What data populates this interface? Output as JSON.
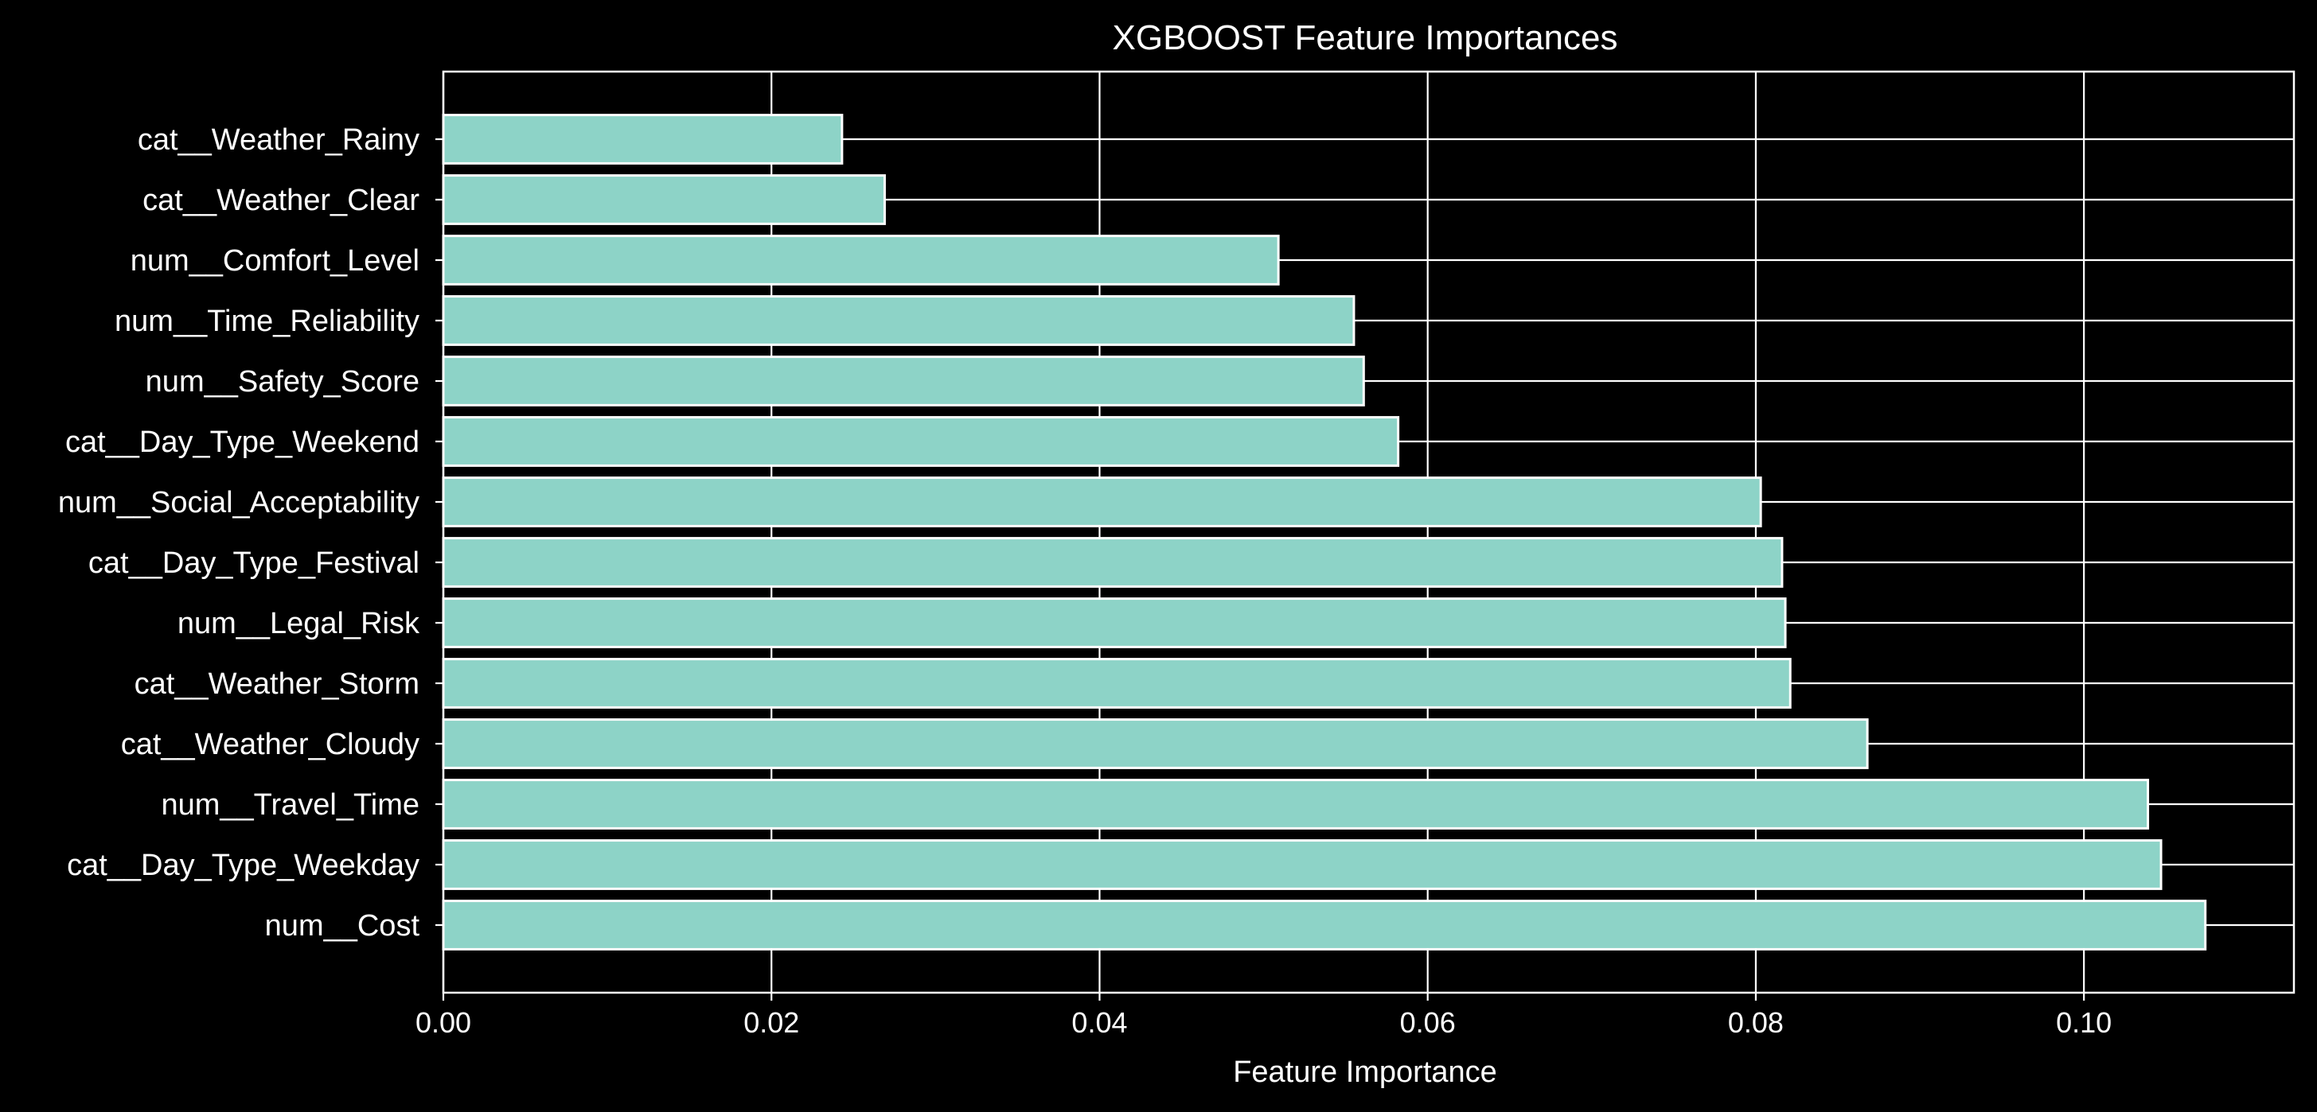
{
  "chart_data": {
    "type": "bar",
    "orientation": "horizontal",
    "title": "XGBOOST Feature Importances",
    "xlabel": "Feature Importance",
    "ylabel": "",
    "xlim": [
      0,
      0.1128
    ],
    "xticks": [
      0.0,
      0.02,
      0.04,
      0.06,
      0.08,
      0.1
    ],
    "xtick_labels": [
      "0.00",
      "0.02",
      "0.04",
      "0.06",
      "0.08",
      "0.10"
    ],
    "grid": true,
    "categories": [
      "cat__Weather_Rainy",
      "cat__Weather_Clear",
      "num__Comfort_Level",
      "num__Time_Reliability",
      "num__Safety_Score",
      "cat__Day_Type_Weekend",
      "num__Social_Acceptability",
      "cat__Day_Type_Festival",
      "num__Legal_Risk",
      "cat__Weather_Storm",
      "cat__Weather_Cloudy",
      "num__Travel_Time",
      "cat__Day_Type_Weekday",
      "num__Cost"
    ],
    "values": [
      0.0243,
      0.0269,
      0.0509,
      0.0555,
      0.0561,
      0.0582,
      0.0803,
      0.0816,
      0.0818,
      0.0821,
      0.0868,
      0.1039,
      0.1047,
      0.1074
    ],
    "colors": {
      "background": "#000000",
      "bar_fill": "#8dd3c7",
      "bar_edge": "#ffffff",
      "grid": "#ffffff",
      "text": "#ffffff"
    }
  }
}
